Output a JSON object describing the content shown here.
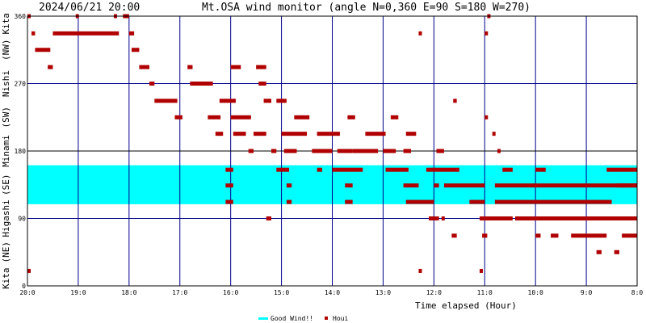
{
  "chart_data": {
    "type": "scatter",
    "timestamp": "2024/06/21 20:00",
    "title": "Mt.OSA wind monitor (angle N=0,360 E=90 S=180 W=270)",
    "xlabel": "Time elapsed (Hour)",
    "ylim": [
      0,
      360
    ],
    "xlim": [
      20,
      8
    ],
    "x_ticks": [
      "20:0",
      "19:0",
      "18:0",
      "17:0",
      "16:0",
      "15:0",
      "14:0",
      "13:0",
      "12:0",
      "11:0",
      "10:0",
      "9:0",
      "8:0"
    ],
    "y_ticks": [
      "0",
      "90",
      "180",
      "270",
      "360"
    ],
    "y_direction_labels": [
      {
        "text": "Kita",
        "center": 10
      },
      {
        "text": "(NE)",
        "center": 45
      },
      {
        "text": "Higashi",
        "center": 90
      },
      {
        "text": "(SE)",
        "center": 135
      },
      {
        "text": "Minami",
        "center": 180
      },
      {
        "text": "(SW)",
        "center": 225
      },
      {
        "text": "Nishi",
        "center": 270
      },
      {
        "text": "(NW)",
        "center": 315
      },
      {
        "text": "Kita",
        "center": 350
      }
    ],
    "good_wind_band": [
      109,
      161
    ],
    "grid": true,
    "legend_position": "bottom-center",
    "legend": [
      {
        "label": "Good Wind!!",
        "color": "#00ffff"
      },
      {
        "label": "Houi",
        "color": "#b00000"
      }
    ],
    "series": [
      {
        "name": "Houi",
        "color": "#b00000",
        "runs": [
          [
            20.0,
            19.96,
            360
          ],
          [
            20.0,
            19.96,
            20
          ],
          [
            19.92,
            19.85,
            337
          ],
          [
            19.85,
            19.55,
            315
          ],
          [
            19.6,
            19.5,
            292
          ],
          [
            19.5,
            18.2,
            337
          ],
          [
            19.05,
            19.0,
            360
          ],
          [
            18.3,
            18.25,
            360
          ],
          [
            18.12,
            18.0,
            360
          ],
          [
            18.0,
            17.9,
            337
          ],
          [
            17.95,
            17.8,
            315
          ],
          [
            17.8,
            17.6,
            292
          ],
          [
            17.6,
            17.5,
            270
          ],
          [
            17.5,
            17.05,
            247
          ],
          [
            17.1,
            16.95,
            225
          ],
          [
            16.85,
            16.75,
            292
          ],
          [
            16.8,
            16.55,
            270
          ],
          [
            16.6,
            16.35,
            270
          ],
          [
            16.45,
            16.2,
            225
          ],
          [
            16.3,
            16.15,
            203
          ],
          [
            16.22,
            15.9,
            247
          ],
          [
            16.0,
            15.8,
            292
          ],
          [
            16.0,
            15.6,
            225
          ],
          [
            15.95,
            15.7,
            203
          ],
          [
            15.65,
            15.55,
            180
          ],
          [
            15.55,
            15.3,
            203
          ],
          [
            15.5,
            15.3,
            292
          ],
          [
            15.45,
            15.3,
            270
          ],
          [
            15.35,
            15.2,
            247
          ],
          [
            15.2,
            15.1,
            180
          ],
          [
            15.1,
            14.9,
            247
          ],
          [
            15.0,
            14.5,
            203
          ],
          [
            14.95,
            14.7,
            180
          ],
          [
            14.75,
            14.45,
            225
          ],
          [
            14.4,
            14.0,
            180
          ],
          [
            14.3,
            13.85,
            203
          ],
          [
            13.9,
            13.6,
            180
          ],
          [
            13.7,
            13.55,
            225
          ],
          [
            13.6,
            13.1,
            180
          ],
          [
            13.35,
            12.95,
            203
          ],
          [
            13.0,
            12.75,
            180
          ],
          [
            12.85,
            12.7,
            225
          ],
          [
            12.6,
            12.45,
            180
          ],
          [
            12.55,
            12.35,
            203
          ],
          [
            11.95,
            11.8,
            180
          ],
          [
            11.62,
            11.55,
            247
          ],
          [
            11.0,
            10.95,
            225
          ],
          [
            10.85,
            10.8,
            203
          ],
          [
            10.75,
            10.72,
            180
          ]
        ],
        "band_runs": [
          [
            16.1,
            15.95,
            155
          ],
          [
            16.1,
            15.95,
            134
          ],
          [
            16.1,
            15.95,
            112
          ],
          [
            15.1,
            14.85,
            155
          ],
          [
            14.9,
            14.8,
            134
          ],
          [
            14.9,
            14.8,
            112
          ],
          [
            14.3,
            14.2,
            155
          ],
          [
            14.0,
            13.4,
            155
          ],
          [
            13.75,
            13.6,
            134
          ],
          [
            13.75,
            13.6,
            112
          ],
          [
            12.95,
            12.5,
            155
          ],
          [
            12.6,
            12.3,
            134
          ],
          [
            12.55,
            12.0,
            112
          ],
          [
            12.15,
            11.5,
            155
          ],
          [
            12.0,
            11.9,
            134
          ],
          [
            11.8,
            11.0,
            134
          ],
          [
            11.3,
            11.0,
            112
          ],
          [
            10.65,
            10.45,
            155
          ],
          [
            10.8,
            8.0,
            134
          ],
          [
            10.8,
            8.5,
            112
          ],
          [
            10.0,
            9.8,
            155
          ],
          [
            8.6,
            8.0,
            155
          ],
          [
            8.4,
            8.0,
            134
          ]
        ],
        "low_runs": [
          [
            15.3,
            15.2,
            90
          ],
          [
            12.1,
            11.9,
            90
          ],
          [
            11.65,
            11.55,
            67
          ],
          [
            11.85,
            11.8,
            90
          ],
          [
            11.1,
            10.45,
            90
          ],
          [
            11.05,
            10.95,
            67
          ],
          [
            10.4,
            8.0,
            90
          ],
          [
            10.0,
            9.9,
            67
          ],
          [
            9.7,
            9.55,
            67
          ],
          [
            9.3,
            8.6,
            67
          ],
          [
            8.8,
            8.7,
            45
          ],
          [
            8.45,
            8.35,
            45
          ],
          [
            8.3,
            8.0,
            67
          ],
          [
            12.3,
            12.25,
            20
          ],
          [
            12.3,
            12.25,
            337
          ],
          [
            11.1,
            11.05,
            20
          ],
          [
            11.0,
            10.95,
            337
          ],
          [
            10.95,
            10.9,
            360
          ]
        ]
      }
    ]
  }
}
